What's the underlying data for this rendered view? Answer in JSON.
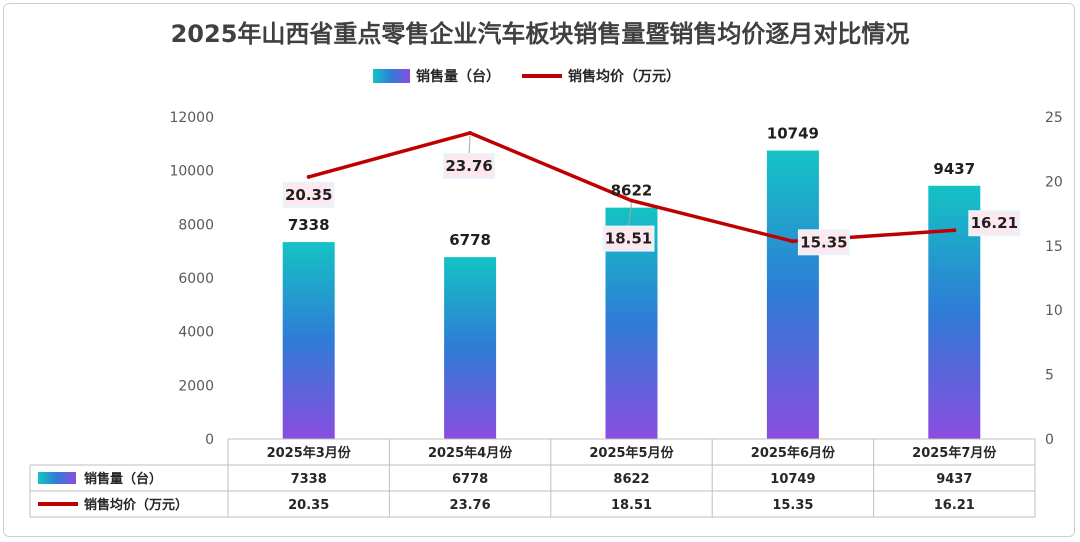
{
  "chart_data": {
    "type": "bar+line",
    "title": "2025年山西省重点零售企业汽车板块销售量暨销售均价逐月对比情况",
    "categories": [
      "2025年3月份",
      "2025年4月份",
      "2025年5月份",
      "2025年6月份",
      "2025年7月份"
    ],
    "series": [
      {
        "name": "销售量（台）",
        "type": "bar",
        "axis": "left",
        "values": [
          7338,
          6778,
          8622,
          10749,
          9437
        ]
      },
      {
        "name": "销售均价（万元）",
        "type": "line",
        "axis": "right",
        "values": [
          20.35,
          23.76,
          18.51,
          15.35,
          16.21
        ]
      }
    ],
    "y_left": {
      "min": 0,
      "max": 12000,
      "ticks": [
        0,
        2000,
        4000,
        6000,
        8000,
        10000,
        12000
      ]
    },
    "y_right": {
      "min": 0,
      "max": 25,
      "ticks": [
        0,
        5,
        10,
        15,
        20,
        25
      ]
    },
    "legend_position": "top",
    "data_table": true,
    "grid": false,
    "colors": {
      "bar_top": "#14c3c4",
      "bar_mid": "#2f7bd6",
      "bar_bottom": "#8a4de0",
      "line": "#c00000",
      "label_box": "#fde8f0",
      "label_box_alt": "#e6f4fb"
    }
  }
}
